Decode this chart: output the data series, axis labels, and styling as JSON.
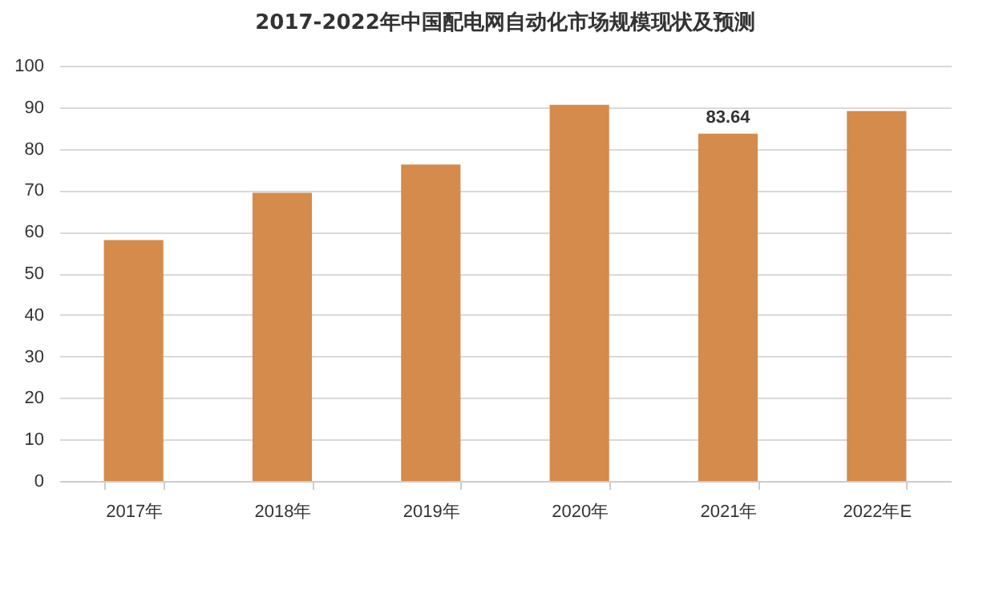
{
  "chart_data": {
    "type": "bar",
    "title": "2017-2022年中国配电网自动化市场规模现状及预测",
    "categories": [
      "2017年",
      "2018年",
      "2019年",
      "2020年",
      "2021年",
      "2022年E"
    ],
    "values": [
      58.0,
      69.4,
      76.2,
      90.6,
      83.64,
      89.1
    ],
    "value_labels": [
      null,
      null,
      null,
      null,
      "83.64",
      null
    ],
    "color": "#d48b4c",
    "ylim": [
      0,
      100
    ],
    "yticks": [
      0,
      10,
      20,
      30,
      40,
      50,
      60,
      70,
      80,
      90,
      100
    ],
    "grid": "y"
  }
}
